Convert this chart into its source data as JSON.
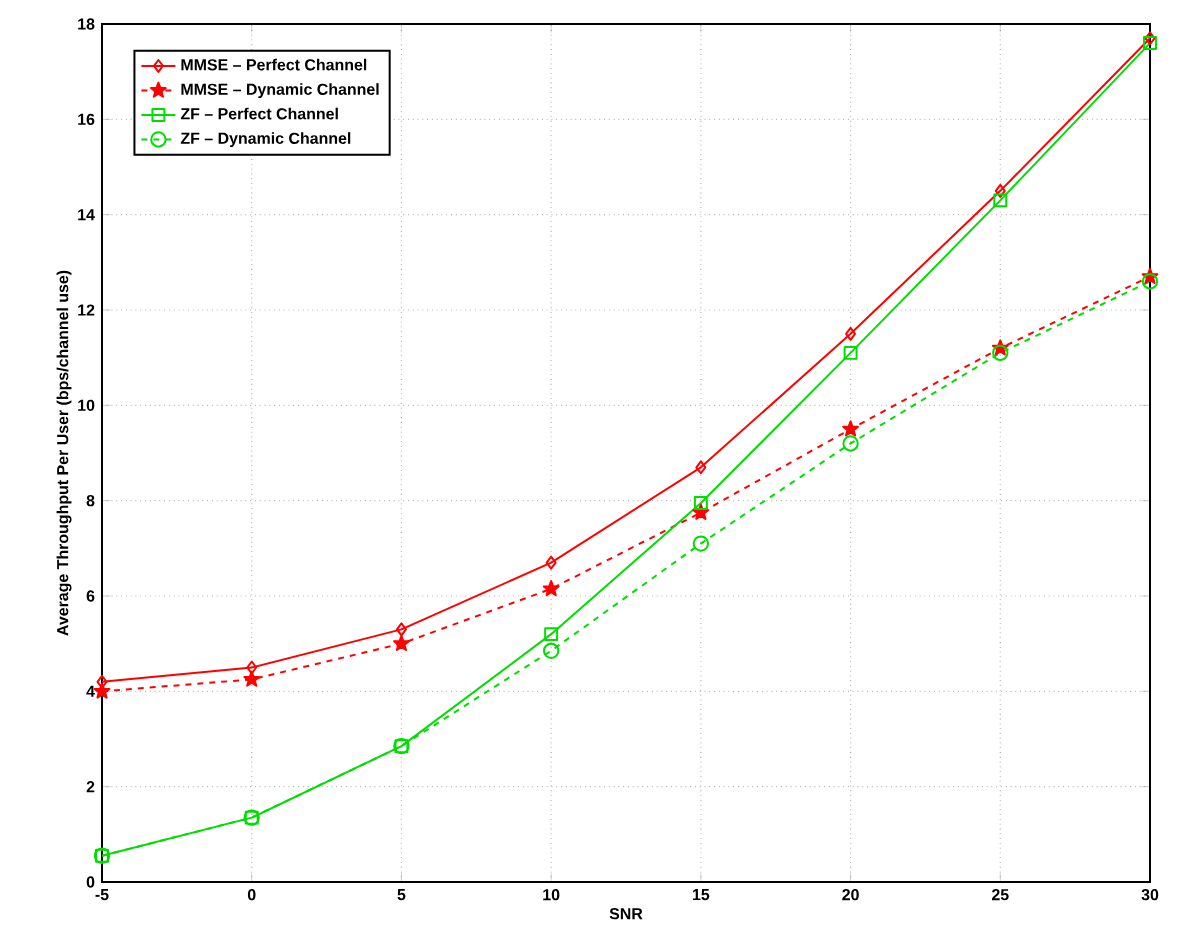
{
  "chart_data": {
    "type": "line",
    "xlabel": "SNR",
    "ylabel": "Average Throughput Per User (bps/channel use)",
    "x": [
      -5,
      0,
      5,
      10,
      15,
      20,
      25,
      30
    ],
    "series": [
      {
        "name": "MMSE – Perfect Channel",
        "color": "#ff0000",
        "marker": "diamond",
        "line_style": "solid",
        "values": [
          4.2,
          4.5,
          5.3,
          6.7,
          8.7,
          11.5,
          14.5,
          17.7
        ]
      },
      {
        "name": "MMSE – Dynamic Channel",
        "color": "#ff0000",
        "marker": "star",
        "line_style": "dashed",
        "values": [
          4.0,
          4.25,
          5.0,
          6.15,
          7.75,
          9.5,
          11.2,
          12.7
        ]
      },
      {
        "name": "ZF – Perfect Channel",
        "color": "#00dd00",
        "marker": "square",
        "line_style": "solid",
        "values": [
          0.55,
          1.35,
          2.85,
          5.2,
          7.95,
          11.1,
          14.3,
          17.6
        ]
      },
      {
        "name": "ZF – Dynamic Channel",
        "color": "#00dd00",
        "marker": "circle",
        "line_style": "dashed",
        "values": [
          0.55,
          1.35,
          2.85,
          4.85,
          7.1,
          9.2,
          11.1,
          12.6
        ]
      }
    ],
    "xlim": [
      -5,
      30
    ],
    "ylim": [
      0,
      18
    ],
    "xticks": [
      -5,
      0,
      5,
      10,
      15,
      20,
      25,
      30
    ],
    "yticks": [
      0,
      2,
      4,
      6,
      8,
      10,
      12,
      14,
      16,
      18
    ],
    "grid": true,
    "legend": "top left"
  }
}
